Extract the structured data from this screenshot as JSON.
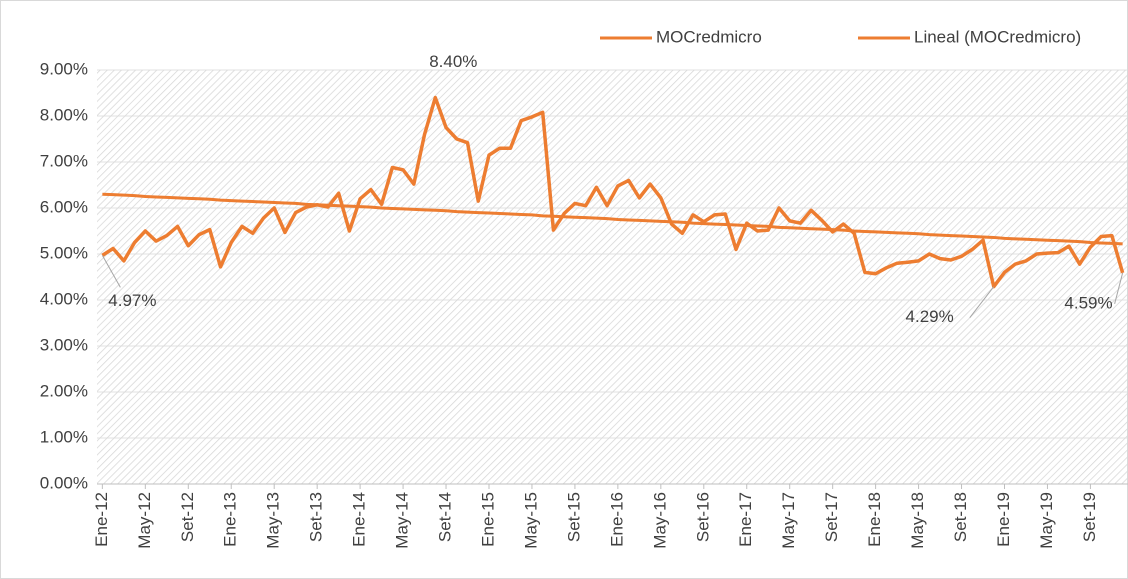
{
  "chart_data": {
    "type": "line",
    "categories": [
      "Ene-12",
      null,
      null,
      null,
      "May-12",
      null,
      null,
      null,
      "Set-12",
      null,
      null,
      null,
      "Ene-13",
      null,
      null,
      null,
      "May-13",
      null,
      null,
      null,
      "Set-13",
      null,
      null,
      null,
      "Ene-14",
      null,
      null,
      null,
      "May-14",
      null,
      null,
      null,
      "Set-14",
      null,
      null,
      null,
      "Ene-15",
      null,
      null,
      null,
      "May-15",
      null,
      null,
      null,
      "Set-15",
      null,
      null,
      null,
      "Ene-16",
      null,
      null,
      null,
      "May-16",
      null,
      null,
      null,
      "Set-16",
      null,
      null,
      null,
      "Ene-17",
      null,
      null,
      null,
      "May-17",
      null,
      null,
      null,
      "Set-17",
      null,
      null,
      null,
      "Ene-18",
      null,
      null,
      null,
      "May-18",
      null,
      null,
      null,
      "Set-18",
      null,
      null,
      null,
      "Ene-19",
      null,
      null,
      null,
      "May-19",
      null,
      null,
      null,
      "Set-19",
      null,
      null,
      null
    ],
    "series": [
      {
        "name": "MOCredmicro",
        "color": "#ed7d31",
        "values": [
          4.97,
          5.12,
          4.85,
          5.25,
          5.5,
          5.28,
          5.4,
          5.6,
          5.18,
          5.42,
          5.53,
          4.72,
          5.25,
          5.6,
          5.45,
          5.78,
          6.0,
          5.47,
          5.9,
          6.02,
          6.07,
          6.02,
          6.32,
          5.5,
          6.2,
          6.4,
          6.08,
          6.88,
          6.83,
          6.52,
          7.6,
          8.4,
          7.75,
          7.5,
          7.42,
          6.15,
          7.15,
          7.3,
          7.3,
          7.9,
          7.98,
          8.08,
          5.52,
          5.88,
          6.1,
          6.05,
          6.45,
          6.05,
          6.48,
          6.6,
          6.22,
          6.52,
          6.22,
          5.65,
          5.45,
          5.85,
          5.7,
          5.85,
          5.87,
          5.1,
          5.67,
          5.5,
          5.52,
          6.0,
          5.72,
          5.67,
          5.95,
          5.73,
          5.48,
          5.65,
          5.45,
          4.6,
          4.57,
          4.7,
          4.8,
          4.82,
          4.85,
          5.0,
          4.9,
          4.87,
          4.95,
          5.1,
          5.3,
          4.29,
          4.6,
          4.78,
          4.85,
          5.0,
          5.02,
          5.03,
          5.17,
          4.78,
          5.15,
          5.38,
          5.4,
          4.59
        ],
        "value_labels": [
          "4.97%",
          null,
          null,
          null,
          null,
          null,
          null,
          null,
          null,
          null,
          null,
          null,
          null,
          null,
          null,
          null,
          null,
          null,
          null,
          null,
          null,
          null,
          null,
          null,
          null,
          null,
          null,
          null,
          null,
          null,
          null,
          "8.40%",
          null,
          null,
          null,
          null,
          null,
          null,
          null,
          null,
          null,
          null,
          null,
          null,
          null,
          null,
          null,
          null,
          null,
          null,
          null,
          null,
          null,
          null,
          null,
          null,
          null,
          null,
          null,
          null,
          null,
          null,
          null,
          null,
          null,
          null,
          null,
          null,
          null,
          null,
          null,
          null,
          null,
          null,
          null,
          null,
          null,
          null,
          null,
          null,
          null,
          null,
          null,
          "4.29%",
          null,
          null,
          null,
          null,
          null,
          null,
          null,
          null,
          null,
          null,
          null,
          "4.59%"
        ]
      },
      {
        "name": "Lineal (MOCredmicro)",
        "color": "#ed7d31",
        "values": [
          6.3,
          6.29,
          6.28,
          6.27,
          6.25,
          6.24,
          6.23,
          6.22,
          6.21,
          6.2,
          6.19,
          6.17,
          6.16,
          6.15,
          6.14,
          6.13,
          6.12,
          6.11,
          6.1,
          6.08,
          6.07,
          6.06,
          6.05,
          6.04,
          6.03,
          6.02,
          6.0,
          5.99,
          5.98,
          5.97,
          5.96,
          5.95,
          5.94,
          5.92,
          5.91,
          5.9,
          5.89,
          5.88,
          5.87,
          5.86,
          5.85,
          5.83,
          5.82,
          5.81,
          5.8,
          5.79,
          5.78,
          5.77,
          5.75,
          5.74,
          5.73,
          5.72,
          5.71,
          5.7,
          5.69,
          5.67,
          5.66,
          5.65,
          5.64,
          5.63,
          5.62,
          5.61,
          5.6,
          5.58,
          5.57,
          5.56,
          5.55,
          5.54,
          5.53,
          5.52,
          5.5,
          5.49,
          5.48,
          5.47,
          5.46,
          5.45,
          5.44,
          5.42,
          5.41,
          5.4,
          5.39,
          5.38,
          5.37,
          5.36,
          5.34,
          5.33,
          5.32,
          5.31,
          5.3,
          5.29,
          5.28,
          5.27,
          5.25,
          5.24,
          5.23,
          5.22
        ]
      }
    ],
    "ylim": [
      0,
      9
    ],
    "yticks": [
      {
        "value": 0,
        "label": "0.00%"
      },
      {
        "value": 1,
        "label": "1.00%"
      },
      {
        "value": 2,
        "label": "2.00%"
      },
      {
        "value": 3,
        "label": "3.00%"
      },
      {
        "value": 4,
        "label": "4.00%"
      },
      {
        "value": 5,
        "label": "5.00%"
      },
      {
        "value": 6,
        "label": "6.00%"
      },
      {
        "value": 7,
        "label": "7.00%"
      },
      {
        "value": 8,
        "label": "8.00%"
      },
      {
        "value": 9,
        "label": "9.00%"
      }
    ],
    "grid": true,
    "legend": "top-right"
  }
}
